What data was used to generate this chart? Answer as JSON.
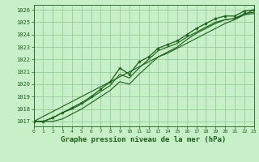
{
  "x": [
    0,
    1,
    2,
    3,
    4,
    5,
    6,
    7,
    8,
    9,
    10,
    11,
    12,
    13,
    14,
    15,
    16,
    17,
    18,
    19,
    20,
    21,
    22,
    23
  ],
  "line_upper_markers": [
    1017.0,
    1017.0,
    1017.3,
    1017.7,
    1018.1,
    1018.5,
    1019.0,
    1019.6,
    1020.2,
    1021.3,
    1020.8,
    1021.8,
    1022.2,
    1022.9,
    1023.2,
    1023.5,
    1024.0,
    1024.5,
    1024.9,
    1025.3,
    1025.5,
    1025.5,
    1025.9,
    1026.0
  ],
  "line_middle": [
    1017.0,
    1017.0,
    1017.3,
    1017.7,
    1018.0,
    1018.4,
    1018.9,
    1019.4,
    1019.9,
    1020.8,
    1020.5,
    1021.3,
    1022.0,
    1022.7,
    1023.0,
    1023.3,
    1023.8,
    1024.2,
    1024.6,
    1025.0,
    1025.2,
    1025.3,
    1025.6,
    1025.7
  ],
  "line_lower": [
    1017.0,
    1017.0,
    1017.0,
    1017.2,
    1017.6,
    1018.0,
    1018.5,
    1019.0,
    1019.5,
    1020.2,
    1020.0,
    1020.8,
    1021.5,
    1022.2,
    1022.6,
    1023.0,
    1023.6,
    1024.1,
    1024.5,
    1024.9,
    1025.2,
    1025.3,
    1025.7,
    1025.8
  ],
  "line_linear": [
    1017.0,
    1017.4,
    1017.8,
    1018.2,
    1018.6,
    1019.0,
    1019.4,
    1019.8,
    1020.2,
    1020.6,
    1021.0,
    1021.4,
    1021.8,
    1022.2,
    1022.5,
    1022.9,
    1023.3,
    1023.7,
    1024.1,
    1024.5,
    1024.9,
    1025.2,
    1025.6,
    1026.0
  ],
  "bg_color": "#c8f0c8",
  "grid_color": "#99cc99",
  "line_color": "#1a5e1a",
  "text_color": "#1a5e1a",
  "xlabel": "Graphe pression niveau de la mer (hPa)",
  "ylim": [
    1016.6,
    1026.4
  ],
  "yticks": [
    1017,
    1018,
    1019,
    1020,
    1021,
    1022,
    1023,
    1024,
    1025,
    1026
  ],
  "xlim": [
    0,
    23
  ],
  "xticks": [
    0,
    1,
    2,
    3,
    4,
    5,
    6,
    7,
    8,
    9,
    10,
    11,
    12,
    13,
    14,
    15,
    16,
    17,
    18,
    19,
    20,
    21,
    22,
    23
  ]
}
